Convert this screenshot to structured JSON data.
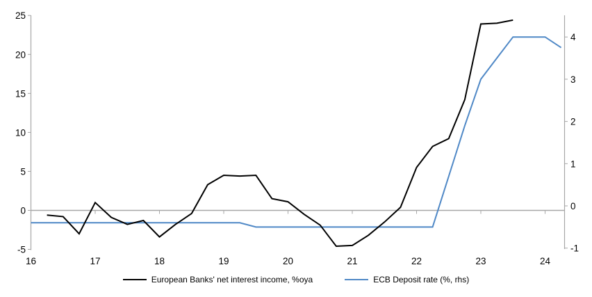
{
  "chart_data": {
    "type": "line",
    "title": "",
    "dual_axis": true,
    "grid": false,
    "zero_line": true,
    "legend_position": "bottom-center",
    "x_axis": {
      "ticks": [
        16,
        17,
        18,
        19,
        20,
        21,
        22,
        23,
        24
      ],
      "range": [
        16,
        24.3
      ],
      "label": ""
    },
    "left_axis": {
      "ticks": [
        25,
        20,
        15,
        10,
        5,
        0,
        -5
      ],
      "range": [
        -5,
        25
      ],
      "label": ""
    },
    "right_axis": {
      "ticks": [
        4,
        3,
        2,
        1,
        0,
        -1
      ],
      "range": [
        -1,
        4.5
      ],
      "label": ""
    },
    "series": [
      {
        "name": "European Banks' net interest income, %oya",
        "axis": "left",
        "color": "#000000",
        "points": [
          [
            16.25,
            -0.6
          ],
          [
            16.5,
            -0.8
          ],
          [
            16.75,
            -3.0
          ],
          [
            17.0,
            1.0
          ],
          [
            17.25,
            -0.9
          ],
          [
            17.5,
            -1.8
          ],
          [
            17.75,
            -1.3
          ],
          [
            18.0,
            -3.4
          ],
          [
            18.25,
            -1.8
          ],
          [
            18.5,
            -0.4
          ],
          [
            18.75,
            3.3
          ],
          [
            19.0,
            4.5
          ],
          [
            19.25,
            4.4
          ],
          [
            19.5,
            4.5
          ],
          [
            19.75,
            1.5
          ],
          [
            20.0,
            1.1
          ],
          [
            20.25,
            -0.5
          ],
          [
            20.5,
            -1.9
          ],
          [
            20.75,
            -4.6
          ],
          [
            21.0,
            -4.5
          ],
          [
            21.25,
            -3.2
          ],
          [
            21.5,
            -1.5
          ],
          [
            21.75,
            0.4
          ],
          [
            22.0,
            5.5
          ],
          [
            22.25,
            8.2
          ],
          [
            22.5,
            9.2
          ],
          [
            22.75,
            14.2
          ],
          [
            23.0,
            23.9
          ],
          [
            23.25,
            24.0
          ],
          [
            23.5,
            24.4
          ]
        ]
      },
      {
        "name": "ECB Deposit rate (%, rhs)",
        "axis": "right",
        "color": "#4f88c6",
        "points": [
          [
            16.0,
            -0.4
          ],
          [
            16.25,
            -0.4
          ],
          [
            16.5,
            -0.4
          ],
          [
            16.75,
            -0.4
          ],
          [
            17.0,
            -0.4
          ],
          [
            17.25,
            -0.4
          ],
          [
            17.5,
            -0.4
          ],
          [
            17.75,
            -0.4
          ],
          [
            18.0,
            -0.4
          ],
          [
            18.25,
            -0.4
          ],
          [
            18.5,
            -0.4
          ],
          [
            18.75,
            -0.4
          ],
          [
            19.0,
            -0.4
          ],
          [
            19.25,
            -0.4
          ],
          [
            19.5,
            -0.5
          ],
          [
            19.75,
            -0.5
          ],
          [
            20.0,
            -0.5
          ],
          [
            20.25,
            -0.5
          ],
          [
            20.5,
            -0.5
          ],
          [
            20.75,
            -0.5
          ],
          [
            21.0,
            -0.5
          ],
          [
            21.25,
            -0.5
          ],
          [
            21.5,
            -0.5
          ],
          [
            21.75,
            -0.5
          ],
          [
            22.0,
            -0.5
          ],
          [
            22.25,
            -0.5
          ],
          [
            22.5,
            0.7
          ],
          [
            22.75,
            1.9
          ],
          [
            23.0,
            3.0
          ],
          [
            23.25,
            3.5
          ],
          [
            23.5,
            4.0
          ],
          [
            23.75,
            4.0
          ],
          [
            24.0,
            4.0
          ],
          [
            24.25,
            3.75
          ]
        ]
      }
    ]
  },
  "legend": {
    "items": [
      {
        "label": "European Banks' net interest income, %oya",
        "color": "#000000"
      },
      {
        "label": "ECB Deposit rate (%, rhs)",
        "color": "#4f88c6"
      }
    ]
  },
  "colors": {
    "background": "#ffffff",
    "axis": "#a6a6a6",
    "zero_line": "#a6a6a6",
    "text": "#000000"
  }
}
